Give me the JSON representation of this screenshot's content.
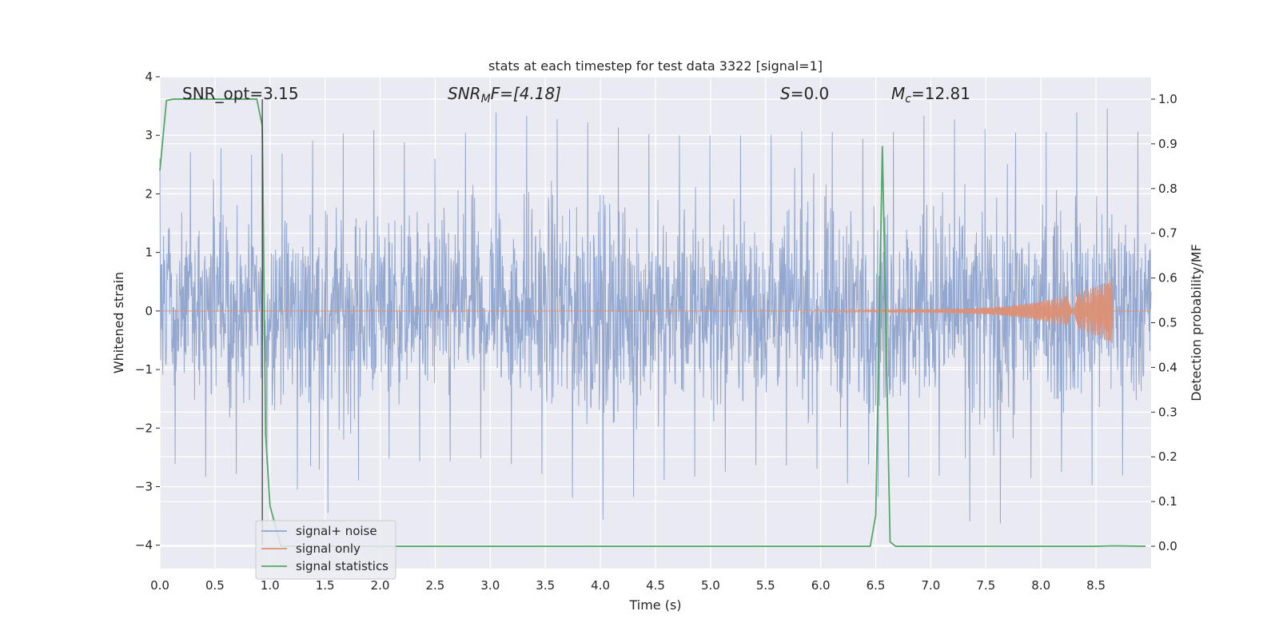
{
  "chart_data": {
    "type": "line",
    "title": "stats at each timestep for test data 3322 [signal=1]",
    "xlabel": "Time (s)",
    "ylabel": "Whitened strain",
    "ylabel_right": "Detection probability/MF",
    "xlim": [
      0.0,
      9.0
    ],
    "ylim": [
      -4.4,
      4.0
    ],
    "ylim_right": [
      -0.05,
      1.05
    ],
    "x_ticks": [
      "0.0",
      "0.5",
      "1.0",
      "1.5",
      "2.0",
      "2.5",
      "3.0",
      "3.5",
      "4.0",
      "4.5",
      "5.0",
      "5.5",
      "6.0",
      "6.5",
      "7.0",
      "7.5",
      "8.0",
      "8.5"
    ],
    "y_ticks": [
      "4",
      "3",
      "2",
      "1",
      "0",
      "−1",
      "−2",
      "−3",
      "−4"
    ],
    "y_ticks_right": [
      "1.0",
      "0.9",
      "0.8",
      "0.7",
      "0.6",
      "0.5",
      "0.4",
      "0.3",
      "0.2",
      "0.1",
      "0.0"
    ],
    "grid": true,
    "legend_position": "lower-left",
    "annotations": {
      "snr_opt": "SNR_opt=3.15",
      "snr_mf_var": "SNR",
      "snr_mf_sub": "M",
      "snr_mf_rest": "F=[4.18]",
      "s_var": "S",
      "s_rest": "=0.0",
      "mc_var": "M",
      "mc_sub": "c",
      "mc_rest": "=12.81"
    },
    "marker_time": 0.93,
    "series": [
      {
        "name": "signal+ noise",
        "color": "#8fa4cc",
        "style": "noise",
        "envelope": {
          "x": [
            0.0,
            0.5,
            1.0,
            1.5,
            2.0,
            2.5,
            3.0,
            3.5,
            4.0,
            4.5,
            5.0,
            5.5,
            6.0,
            6.5,
            7.0,
            7.5,
            8.0,
            8.5,
            9.0
          ],
          "max": [
            2.6,
            2.8,
            2.6,
            3.0,
            3.1,
            2.6,
            3.4,
            3.3,
            3.2,
            3.0,
            3.0,
            3.0,
            3.1,
            2.9,
            3.4,
            3.1,
            3.0,
            3.6,
            2.9
          ],
          "min": [
            -2.5,
            -2.9,
            -2.6,
            -3.5,
            -2.5,
            -2.6,
            -2.5,
            -2.8,
            -3.6,
            -2.9,
            -2.8,
            -2.6,
            -2.7,
            -3.2,
            -2.6,
            -4.0,
            -2.6,
            -3.0,
            -2.6
          ]
        }
      },
      {
        "name": "signal only",
        "color": "#dd8f74",
        "style": "chirp",
        "chirp": {
          "start_time": 5.8,
          "end_time": 8.65,
          "start_amplitude": 0.02,
          "peak_amplitude": 0.55
        }
      },
      {
        "name": "signal statistics",
        "color": "#55a868",
        "axis": "right",
        "x": [
          0.0,
          0.06,
          0.12,
          0.25,
          0.5,
          0.75,
          0.88,
          0.93,
          0.96,
          1.0,
          1.1,
          2.0,
          3.0,
          4.0,
          5.0,
          6.0,
          6.45,
          6.5,
          6.56,
          6.63,
          6.68,
          7.0,
          8.0,
          8.5,
          8.65,
          8.95
        ],
        "y": [
          0.84,
          0.997,
          1.0,
          1.0,
          1.0,
          1.0,
          1.0,
          0.94,
          0.25,
          0.09,
          0.0,
          0.0,
          0.0,
          0.0,
          0.0,
          0.0,
          0.0,
          0.07,
          0.895,
          0.01,
          0.0,
          0.0,
          0.0,
          0.0,
          0.001,
          0.0
        ]
      }
    ]
  }
}
